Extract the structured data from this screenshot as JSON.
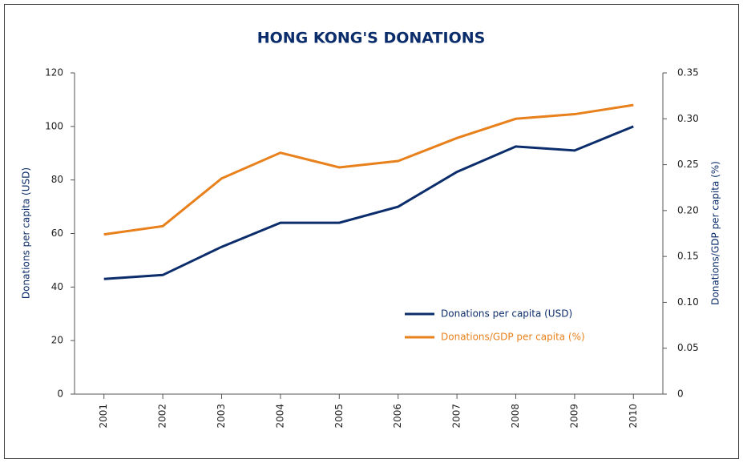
{
  "chart_data": {
    "type": "line",
    "title": "HONG KONG'S DONATIONS",
    "y_label": "Donations per capita (USD)",
    "y2_label": "Donations/GDP per capita (%)",
    "categories": [
      "2001",
      "2002",
      "2003",
      "2004",
      "2005",
      "2006",
      "2007",
      "2008",
      "2009",
      "2010"
    ],
    "series": [
      {
        "name": "Donations per capita (USD)",
        "color": "#0c2d6b",
        "values": [
          43,
          44.5,
          55,
          64,
          64,
          70,
          83,
          92.5,
          91,
          100
        ]
      },
      {
        "name": "Donations/GDP per capita (%)",
        "color": "#e8801c",
        "axis": "y2",
        "values": [
          0.174,
          0.183,
          0.235,
          0.263,
          0.247,
          0.254,
          0.279,
          0.3,
          0.305,
          0.315
        ]
      }
    ],
    "ylim": [
      0,
      120
    ],
    "yticks": [
      0,
      20,
      40,
      60,
      80,
      100,
      120
    ],
    "y2lim": [
      0,
      0.35
    ],
    "y2ticks": [
      0,
      0.05,
      {
        "value": 0.1,
        "label": "0.10"
      },
      0.15,
      {
        "value": 0.2,
        "label": "0.20"
      },
      0.25,
      {
        "value": 0.3,
        "label": "0.30"
      },
      0.35
    ],
    "grid": false,
    "legend": "lower right"
  }
}
